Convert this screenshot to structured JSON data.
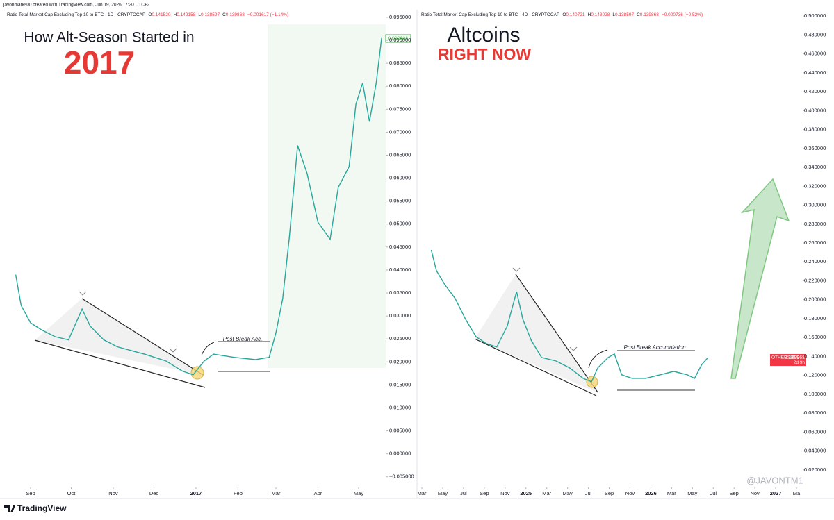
{
  "credit": "javonmarks00 created with TradingView.com, Jun 19, 2026 17:20 UTC+2",
  "brand": "TradingView",
  "watermark": "@JAVONTM1",
  "chart_data": [
    {
      "type": "line",
      "header": "Ratio Total Market Cap Excluding Top 10 to BTC · 1D · CRYPTOCAP",
      "ohlc": [
        "O",
        "0.141520",
        "H",
        "0.142158",
        "L",
        "0.138597",
        "C",
        "0.139868",
        "−0.001617 (−1.14%)"
      ],
      "title": "How Alt-Season Started in",
      "subtitle": "2017",
      "annotation": "Post Break Acc.",
      "price_tag": "0.090608",
      "xlim": [
        -20,
        262
      ],
      "xticks": [
        {
          "value": 0,
          "label": "Sep"
        },
        {
          "value": 30,
          "label": "Oct"
        },
        {
          "value": 61,
          "label": "Nov"
        },
        {
          "value": 91,
          "label": "Dec"
        },
        {
          "value": 122,
          "label": "2017"
        },
        {
          "value": 153,
          "label": "Feb"
        },
        {
          "value": 181,
          "label": "Mar"
        },
        {
          "value": 212,
          "label": "Apr"
        },
        {
          "value": 242,
          "label": "May"
        }
      ],
      "ylim": [
        -0.007,
        0.0965
      ],
      "yticks": [
        {
          "value": -0.005,
          "label": "−0.005000"
        },
        {
          "value": 0,
          "label": "0.000000"
        },
        {
          "value": 0.005,
          "label": "0.005000"
        },
        {
          "value": 0.01,
          "label": "0.010000"
        },
        {
          "value": 0.015,
          "label": "0.015000"
        },
        {
          "value": 0.02,
          "label": "0.020000"
        },
        {
          "value": 0.025,
          "label": "0.025000"
        },
        {
          "value": 0.03,
          "label": "0.030000"
        },
        {
          "value": 0.035,
          "label": "0.035000"
        },
        {
          "value": 0.04,
          "label": "0.040000"
        },
        {
          "value": 0.045,
          "label": "0.045000"
        },
        {
          "value": 0.05,
          "label": "0.050000"
        },
        {
          "value": 0.055,
          "label": "0.055000"
        },
        {
          "value": 0.06,
          "label": "0.060000"
        },
        {
          "value": 0.065,
          "label": "0.065000"
        },
        {
          "value": 0.07,
          "label": "0.070000"
        },
        {
          "value": 0.075,
          "label": "0.075000"
        },
        {
          "value": 0.08,
          "label": "0.080000"
        },
        {
          "value": 0.085,
          "label": "0.085000"
        },
        {
          "value": 0.09,
          "label": "0.090000"
        },
        {
          "value": 0.095,
          "label": "0.095000"
        }
      ],
      "x": [
        -11,
        -7,
        0,
        8,
        18,
        28,
        38,
        44,
        54,
        64,
        74,
        84,
        100,
        112,
        120,
        128,
        135,
        150,
        166,
        176,
        181,
        186,
        191,
        197,
        204,
        212,
        221,
        227,
        235,
        240,
        245,
        250,
        255,
        259
      ],
      "series": [
        {
          "color": "#26a69a",
          "values": [
            0.039,
            0.0323,
            0.0285,
            0.027,
            0.0255,
            0.0248,
            0.0315,
            0.0278,
            0.0248,
            0.0233,
            0.0225,
            0.0217,
            0.0202,
            0.018,
            0.0172,
            0.0202,
            0.0217,
            0.021,
            0.0205,
            0.021,
            0.0263,
            0.0338,
            0.0474,
            0.0671,
            0.061,
            0.0504,
            0.0467,
            0.058,
            0.0625,
            0.0761,
            0.0807,
            0.0723,
            0.0807,
            0.0905
          ]
        }
      ]
    },
    {
      "type": "line",
      "header": "Ratio Total Market Cap Excluding Top 10 to BTC · 4D · CRYPTOCAP",
      "ohlc": [
        "O",
        "0.140721",
        "H",
        "0.143028",
        "L",
        "0.138597",
        "C",
        "0.139868",
        "−0.000736 (−0.52%)"
      ],
      "title": "Altcoins",
      "subtitle": "RIGHT NOW",
      "annotation": "Post Break Accumulation",
      "price_tag": [
        "OTHERSBTC",
        "0.139868",
        "2d 9h"
      ],
      "xlim": [
        1.53,
        38.6
      ],
      "xticks": [
        {
          "value": 2,
          "label": "Mar"
        },
        {
          "value": 4,
          "label": "May"
        },
        {
          "value": 6,
          "label": "Jul"
        },
        {
          "value": 8,
          "label": "Sep"
        },
        {
          "value": 10,
          "label": "Nov"
        },
        {
          "value": 12,
          "label": "2025"
        },
        {
          "value": 14,
          "label": "Mar"
        },
        {
          "value": 16,
          "label": "May"
        },
        {
          "value": 18,
          "label": "Jul"
        },
        {
          "value": 20,
          "label": "Sep"
        },
        {
          "value": 22,
          "label": "Nov"
        },
        {
          "value": 24,
          "label": "2026"
        },
        {
          "value": 26,
          "label": "Mar"
        },
        {
          "value": 28,
          "label": "May"
        },
        {
          "value": 30,
          "label": "Jul"
        },
        {
          "value": 32,
          "label": "Sep"
        },
        {
          "value": 34,
          "label": "Nov"
        },
        {
          "value": 36,
          "label": "2027"
        },
        {
          "value": 38,
          "label": "Ma"
        }
      ],
      "ylim": [
        0.003,
        0.506
      ],
      "yticks": [
        {
          "value": 0.02,
          "label": "0.020000"
        },
        {
          "value": 0.04,
          "label": "0.040000"
        },
        {
          "value": 0.06,
          "label": "0.060000"
        },
        {
          "value": 0.08,
          "label": "0.080000"
        },
        {
          "value": 0.1,
          "label": "0.100000"
        },
        {
          "value": 0.12,
          "label": "0.120000"
        },
        {
          "value": 0.14,
          "label": "0.140000"
        },
        {
          "value": 0.16,
          "label": "0.160000"
        },
        {
          "value": 0.18,
          "label": "0.180000"
        },
        {
          "value": 0.2,
          "label": "0.200000"
        },
        {
          "value": 0.22,
          "label": "0.220000"
        },
        {
          "value": 0.24,
          "label": "0.240000"
        },
        {
          "value": 0.26,
          "label": "0.260000"
        },
        {
          "value": 0.28,
          "label": "0.280000"
        },
        {
          "value": 0.3,
          "label": "0.300000"
        },
        {
          "value": 0.32,
          "label": "0.320000"
        },
        {
          "value": 0.34,
          "label": "0.340000"
        },
        {
          "value": 0.36,
          "label": "0.360000"
        },
        {
          "value": 0.38,
          "label": "0.380000"
        },
        {
          "value": 0.4,
          "label": "0.400000"
        },
        {
          "value": 0.42,
          "label": "0.420000"
        },
        {
          "value": 0.44,
          "label": "0.440000"
        },
        {
          "value": 0.46,
          "label": "0.460000"
        },
        {
          "value": 0.48,
          "label": "0.480000"
        },
        {
          "value": 0.5,
          "label": "0.500000"
        }
      ],
      "x": [
        2.9,
        3.4,
        4.2,
        5.2,
        6.2,
        7.2,
        8.2,
        9.2,
        10.2,
        11.1,
        11.7,
        12.5,
        13.5,
        14.9,
        16.2,
        17.5,
        18.3,
        18.9,
        19.9,
        20.5,
        21.2,
        22.2,
        23.5,
        24.9,
        26.2,
        27.5,
        28.2,
        28.9,
        29.5
      ],
      "series": [
        {
          "color": "#26a69a",
          "values": [
            0.2527,
            0.2306,
            0.216,
            0.2013,
            0.1793,
            0.1609,
            0.1536,
            0.15,
            0.172,
            0.2086,
            0.1793,
            0.1573,
            0.1389,
            0.1352,
            0.1279,
            0.1169,
            0.1132,
            0.1279,
            0.1389,
            0.1426,
            0.1206,
            0.1169,
            0.1169,
            0.1206,
            0.1242,
            0.1206,
            0.1169,
            0.1316,
            0.1389
          ]
        }
      ]
    }
  ]
}
